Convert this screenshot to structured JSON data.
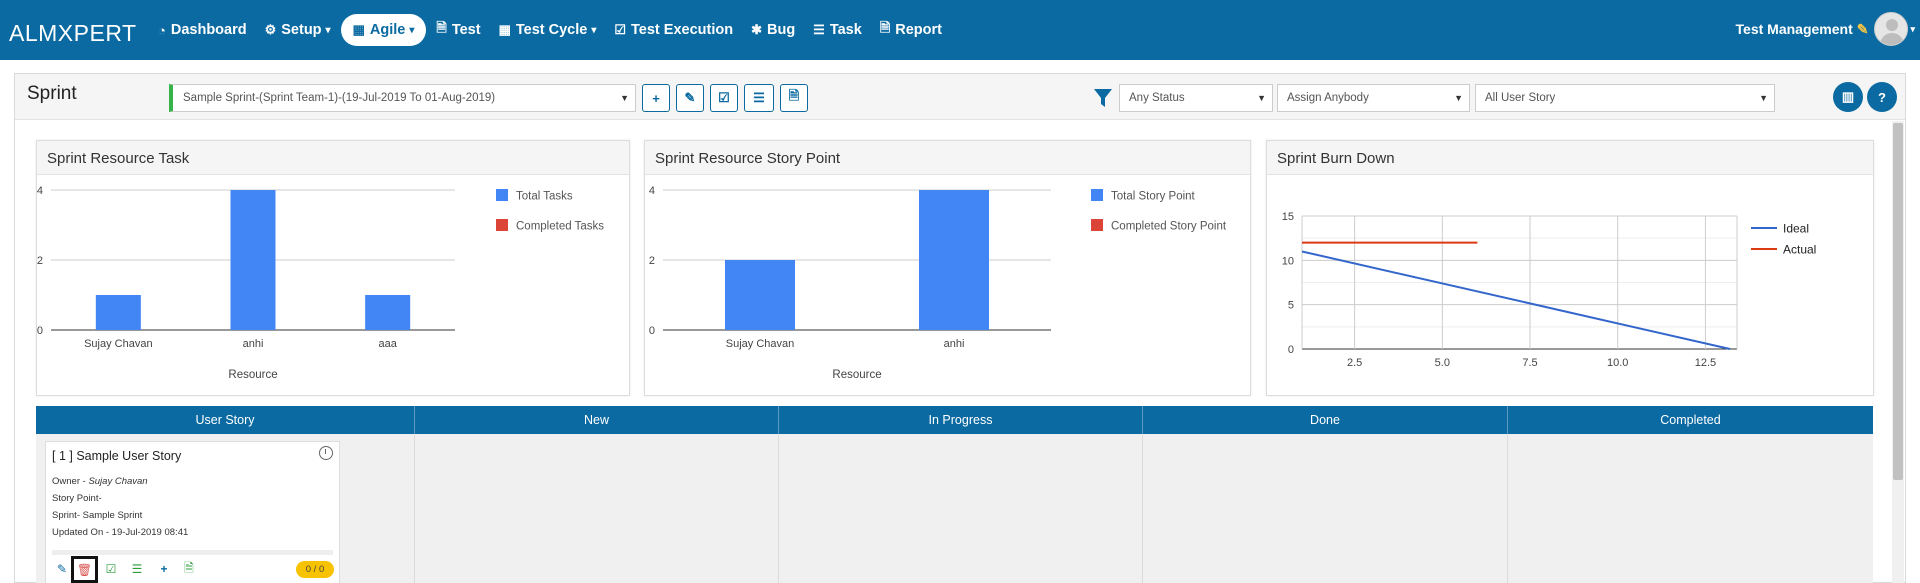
{
  "app": {
    "logo_text": "ALMXPERT",
    "user_name": "Test Management"
  },
  "nav": [
    {
      "label": "Dashboard",
      "icon": "dashboard-icon"
    },
    {
      "label": "Setup",
      "icon": "cogs-icon",
      "caret": true
    },
    {
      "label": "Agile",
      "icon": "table-icon",
      "caret": true,
      "active": true
    },
    {
      "label": "Test",
      "icon": "file-icon"
    },
    {
      "label": "Test Cycle",
      "icon": "table-icon",
      "caret": true
    },
    {
      "label": "Test Execution",
      "icon": "check-square-icon"
    },
    {
      "label": "Bug",
      "icon": "bug-icon"
    },
    {
      "label": "Task",
      "icon": "list-icon"
    },
    {
      "label": "Report",
      "icon": "file-icon"
    }
  ],
  "page": {
    "title": "Sprint",
    "sprint_select": "Sample Sprint-(Sprint Team-1)-(19-Jul-2019 To 01-Aug-2019)",
    "status_filter": "Any Status",
    "assign_filter": "Assign Anybody",
    "story_filter": "All User Story"
  },
  "charts": {
    "resource_task": {
      "title": "Sprint Resource Task"
    },
    "story_point": {
      "title": "Sprint Resource Story Point"
    },
    "burn_down": {
      "title": "Sprint Burn Down"
    }
  },
  "chart_data": [
    {
      "type": "bar",
      "title": "Sprint Resource Task",
      "categories": [
        "Sujay Chavan",
        "anhi",
        "aaa"
      ],
      "series": [
        {
          "name": "Total Tasks",
          "values": [
            1,
            4,
            1
          ],
          "color": "#4285f4"
        },
        {
          "name": "Completed Tasks",
          "values": [
            0,
            0,
            0
          ],
          "color": "#db4437"
        }
      ],
      "xlabel": "Resource",
      "ylabel": "",
      "ylim": [
        0,
        4
      ],
      "yticks": [
        0,
        2,
        4
      ],
      "legend": "right"
    },
    {
      "type": "bar",
      "title": "Sprint Resource Story Point",
      "categories": [
        "Sujay Chavan",
        "anhi"
      ],
      "series": [
        {
          "name": "Total Story Point",
          "values": [
            2,
            4
          ],
          "color": "#4285f4"
        },
        {
          "name": "Completed Story Point",
          "values": [
            0,
            0
          ],
          "color": "#db4437"
        }
      ],
      "xlabel": "Resource",
      "ylabel": "",
      "ylim": [
        0,
        4
      ],
      "yticks": [
        0,
        2,
        4
      ],
      "legend": "right"
    },
    {
      "type": "line",
      "title": "Sprint Burn Down",
      "series": [
        {
          "name": "Ideal",
          "color": "#3366cc",
          "x": [
            1,
            13.2
          ],
          "y": [
            11,
            0
          ]
        },
        {
          "name": "Actual",
          "color": "#dc3912",
          "x": [
            1,
            6
          ],
          "y": [
            12,
            12
          ]
        }
      ],
      "xlim": [
        1,
        13.4
      ],
      "ylim": [
        0,
        15
      ],
      "xticks": [
        "2.5",
        "5.0",
        "7.5",
        "10.0",
        "12.5"
      ],
      "yticks": [
        "0",
        "5",
        "10",
        "15"
      ],
      "grid": true,
      "legend": "right"
    }
  ],
  "kanban": {
    "columns": [
      "User Story",
      "New",
      "In Progress",
      "Done",
      "Completed"
    ],
    "story": {
      "title": "[ 1 ] Sample User Story",
      "owner_label": "Owner - ",
      "owner": "Sujay Chavan",
      "story_point": "Story Point-",
      "sprint": "Sprint- Sample Sprint",
      "updated": "Updated On - 19-Jul-2019 08:41",
      "badge": "0 / 0"
    }
  },
  "colors": {
    "brand": "#0a6aa1",
    "bar": "#4285f4",
    "completed": "#db4437",
    "badge": "#f7c200"
  }
}
